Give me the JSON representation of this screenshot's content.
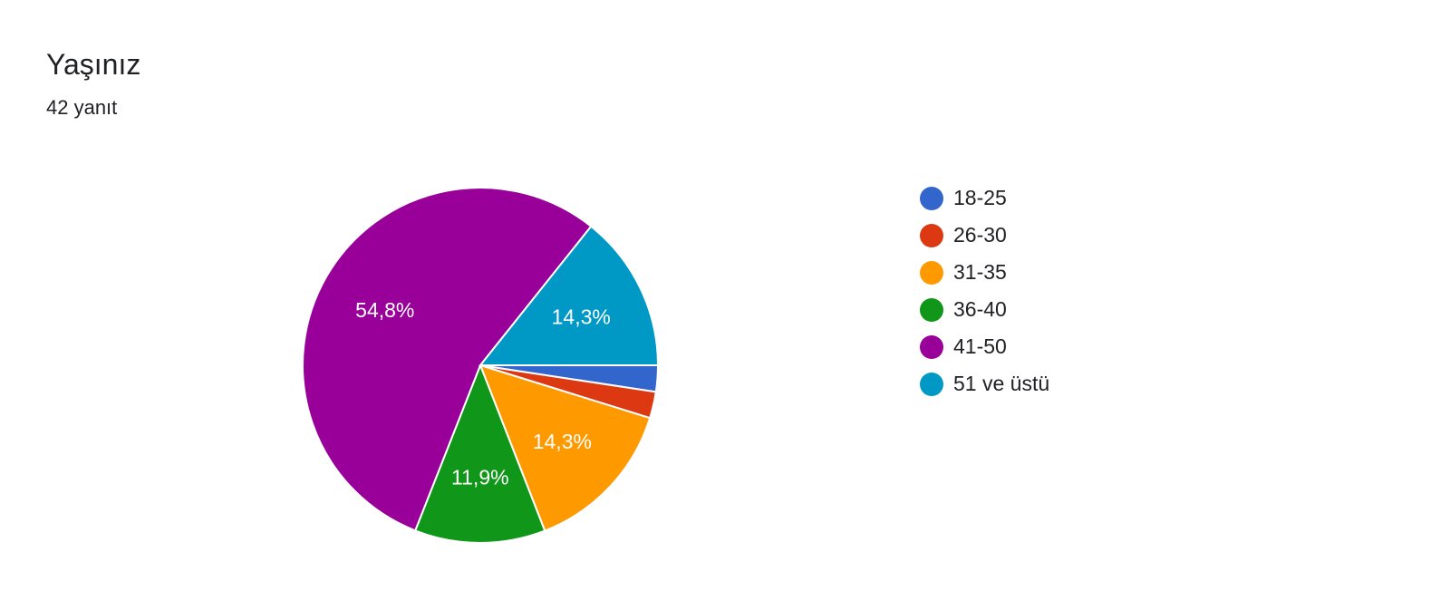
{
  "header": {
    "title": "Yaşınız",
    "subtitle": "42 yanıt"
  },
  "chart_data": {
    "type": "pie",
    "title": "Yaşınız",
    "subtitle": "42 yanıt",
    "legend_position": "right",
    "series": [
      {
        "name": "18-25",
        "value": 2.4,
        "color": "#3366cc",
        "label": ""
      },
      {
        "name": "26-30",
        "value": 2.4,
        "color": "#dc3912",
        "label": ""
      },
      {
        "name": "31-35",
        "value": 14.3,
        "color": "#ff9900",
        "label": "14,3%"
      },
      {
        "name": "36-40",
        "value": 11.9,
        "color": "#109618",
        "label": "11,9%"
      },
      {
        "name": "41-50",
        "value": 54.8,
        "color": "#990099",
        "label": "54,8%"
      },
      {
        "name": "51 ve üstü",
        "value": 14.3,
        "color": "#0099c6",
        "label": "14,3%"
      }
    ]
  }
}
